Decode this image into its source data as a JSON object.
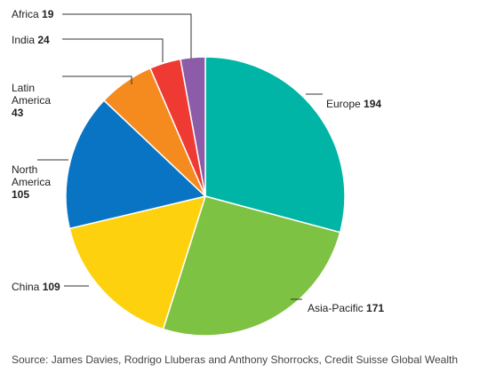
{
  "chart_data": {
    "type": "pie",
    "slices": [
      {
        "name": "Europe",
        "value": 194,
        "color": "#00b5a5"
      },
      {
        "name": "Asia-Pacific",
        "value": 171,
        "color": "#7dc242"
      },
      {
        "name": "China",
        "value": 109,
        "color": "#fdd10e"
      },
      {
        "name": "North America",
        "value": 105,
        "color": "#0a74c4"
      },
      {
        "name": "Latin America",
        "value": 43,
        "color": "#f58a1f"
      },
      {
        "name": "India",
        "value": 24,
        "color": "#ee3a33"
      },
      {
        "name": "Africa",
        "value": 19,
        "color": "#8d5ca8"
      }
    ],
    "labels": {
      "europe": {
        "name": "Europe",
        "value": "194"
      },
      "asia": {
        "name": "Asia-Pacific",
        "value": "171"
      },
      "china": {
        "name": "China",
        "value": "109"
      },
      "north_america": {
        "line1": "North",
        "line2": "America",
        "value": "105"
      },
      "latin_america": {
        "line1": "Latin",
        "line2": "America",
        "value": "43"
      },
      "india": {
        "name": "India",
        "value": "24"
      },
      "africa": {
        "name": "Africa",
        "value": "19"
      }
    },
    "source": "Source: James Davies, Rodrigo Lluberas and Anthony Shorrocks, Credit Suisse Global Wealth"
  }
}
